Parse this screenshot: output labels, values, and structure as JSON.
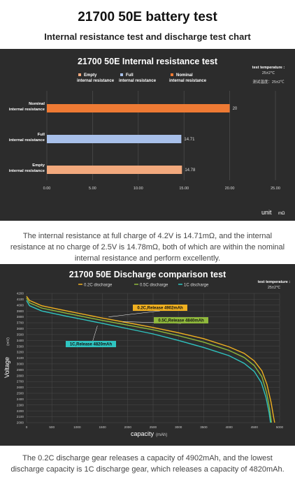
{
  "header": {
    "title": "21700 50E battery test",
    "subtitle": "Internal resistance test and discharge test chart"
  },
  "captions": {
    "ir": "The internal resistance at full charge of 4.2V is 14.71mΩ, and the internal resistance at no charge of 2.5V is 14.78mΩ, both of which are within the nominal internal resistance and perform excellently.",
    "discharge": "The 0.2C discharge gear releases a capacity of 4902mAh, and the lowest discharge capacity is 1C discharge gear, which releases a capacity of 4820mAh."
  },
  "colors": {
    "orange": "#ee7a34",
    "blue": "#a8c0ea",
    "salmon": "#f2a97d",
    "yellow": "#f0b020",
    "green": "#8fb83c",
    "cyan": "#2fc4c0",
    "panel": "#2c2c2c"
  },
  "chart_data": [
    {
      "type": "bar",
      "orientation": "horizontal",
      "title": "21700 50E Internal resistance test",
      "categories": [
        "Nominal\ninternal resistance",
        "Full\ninternal resistance",
        "Empty\ninternal resistance"
      ],
      "values": [
        20,
        14.71,
        14.78
      ],
      "value_labels": [
        "20",
        "14.71",
        "14.78"
      ],
      "bar_colors": [
        "#ee7a34",
        "#a8c0ea",
        "#f2a97d"
      ],
      "legend": [
        "Empty\ninternal resistance",
        "Full\ninternal resistance",
        "Nominal\ninternal resistance"
      ],
      "legend_colors": [
        "#f2a97d",
        "#a8c0ea",
        "#ee7a34"
      ],
      "xlim": [
        0,
        25
      ],
      "xticks": [
        "0.00",
        "5.00",
        "10.00",
        "15.00",
        "20.00",
        "25.00"
      ],
      "xlabel": "unit",
      "xlabel_unit": "mΩ",
      "note": [
        "test temperature :",
        "25±2℃",
        "测试温度：25±2℃"
      ],
      "grid": true
    },
    {
      "type": "line",
      "title": "21700 50E  Discharge comparison test",
      "xlabel": "capacity",
      "xlabel_unit": "(mAh)",
      "ylabel": "Voltage",
      "ylabel_unit": "(mV)",
      "xlim": [
        0,
        5000
      ],
      "ylim": [
        2000,
        4200
      ],
      "xticks": [
        0,
        500,
        1000,
        1500,
        2000,
        2500,
        3000,
        3500,
        4000,
        4500,
        5000
      ],
      "yticks": [
        2000,
        2100,
        2200,
        2300,
        2400,
        2500,
        2600,
        2700,
        2800,
        2900,
        3000,
        3100,
        3200,
        3300,
        3400,
        3500,
        3600,
        3700,
        3800,
        3900,
        4000,
        4100,
        4200
      ],
      "note": [
        "test temperature :",
        "25±2℃"
      ],
      "grid": true,
      "legend_position": "top",
      "series": [
        {
          "name": "0.2C discharge",
          "color": "#f0b020",
          "x": [
            0,
            60,
            300,
            800,
            1500,
            2000,
            2500,
            3000,
            3500,
            4000,
            4300,
            4500,
            4650,
            4750,
            4830,
            4880,
            4902
          ],
          "y": [
            4150,
            4080,
            3990,
            3900,
            3780,
            3700,
            3620,
            3530,
            3430,
            3290,
            3180,
            3050,
            2880,
            2650,
            2350,
            2100,
            2000
          ],
          "label": "0.2C,Release 4902mAh"
        },
        {
          "name": "0.5C discharge",
          "color": "#8fb83c",
          "x": [
            0,
            60,
            300,
            800,
            1500,
            2000,
            2500,
            3000,
            3500,
            4000,
            4300,
            4500,
            4650,
            4740,
            4800,
            4840
          ],
          "y": [
            4120,
            4040,
            3950,
            3860,
            3740,
            3660,
            3580,
            3480,
            3370,
            3230,
            3110,
            2970,
            2780,
            2520,
            2250,
            2000
          ],
          "label": "0.5C,Release 4840mAh"
        },
        {
          "name": "1C discharge",
          "color": "#2fc4c0",
          "x": [
            0,
            60,
            300,
            800,
            1500,
            2000,
            2500,
            3000,
            3500,
            4000,
            4300,
            4500,
            4640,
            4730,
            4790,
            4820
          ],
          "y": [
            4080,
            3990,
            3900,
            3810,
            3690,
            3600,
            3510,
            3400,
            3280,
            3140,
            3010,
            2870,
            2680,
            2430,
            2180,
            2000
          ],
          "label": "1C,Release 4820mAh"
        }
      ]
    }
  ]
}
